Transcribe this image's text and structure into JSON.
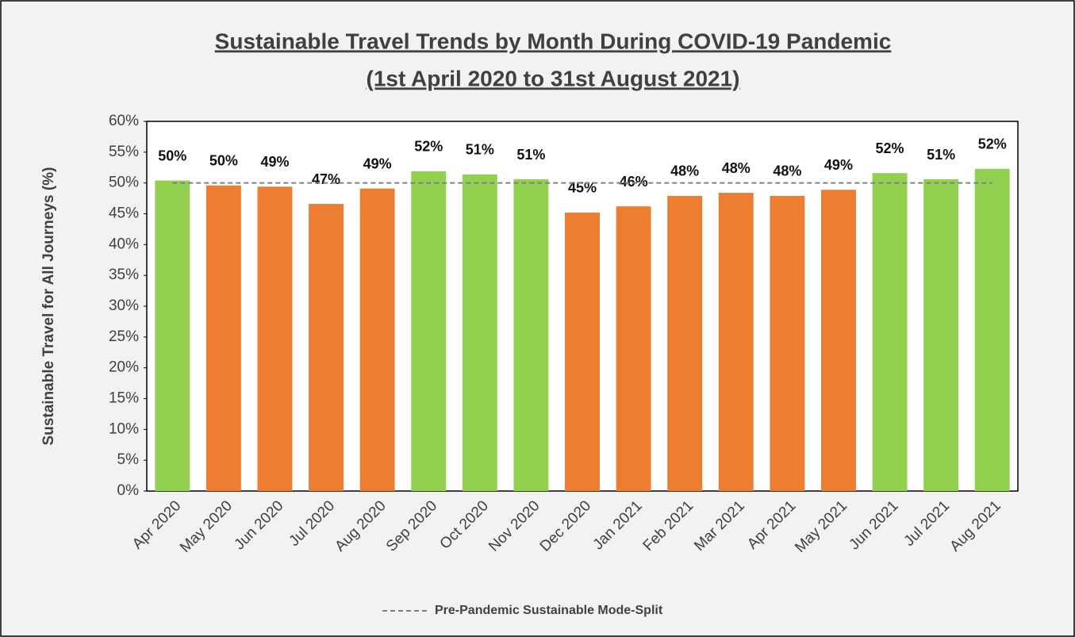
{
  "chart_data": {
    "type": "bar",
    "title": "Sustainable Travel Trends by Month During COVID-19 Pandemic",
    "subtitle": "(1st April 2020 to 31st August 2021)",
    "y_axis_label": "Sustainable Travel for All Journeys (%)",
    "categories": [
      "Apr 2020",
      "May 2020",
      "Jun 2020",
      "Jul 2020",
      "Aug 2020",
      "Sep 2020",
      "Oct 2020",
      "Nov 2020",
      "Dec 2020",
      "Jan 2021",
      "Feb 2021",
      "Mar 2021",
      "Apr 2021",
      "May 2021",
      "Jun 2021",
      "Jul 2021",
      "Aug 2021"
    ],
    "values": [
      50.4,
      49.6,
      49.4,
      46.6,
      49.1,
      51.9,
      51.4,
      50.6,
      45.2,
      46.2,
      47.9,
      48.4,
      47.9,
      48.9,
      51.6,
      50.6,
      52.3
    ],
    "value_labels": [
      "50%",
      "50%",
      "49%",
      "47%",
      "49%",
      "52%",
      "51%",
      "51%",
      "45%",
      "46%",
      "48%",
      "48%",
      "48%",
      "49%",
      "52%",
      "51%",
      "52%"
    ],
    "colors": [
      "#92d050",
      "#ed7d31",
      "#ed7d31",
      "#ed7d31",
      "#ed7d31",
      "#92d050",
      "#92d050",
      "#92d050",
      "#ed7d31",
      "#ed7d31",
      "#ed7d31",
      "#ed7d31",
      "#ed7d31",
      "#ed7d31",
      "#92d050",
      "#92d050",
      "#92d050"
    ],
    "reference_line": {
      "name": "Pre-Pandemic Sustainable Mode-Split",
      "value": 50,
      "color": "#808080"
    },
    "ylim": [
      0,
      60
    ],
    "yticks": [
      {
        "value": 0,
        "label": "0%"
      },
      {
        "value": 5,
        "label": "5%"
      },
      {
        "value": 10,
        "label": "10%"
      },
      {
        "value": 15,
        "label": "15%"
      },
      {
        "value": 20,
        "label": "20%"
      },
      {
        "value": 25,
        "label": "25%"
      },
      {
        "value": 30,
        "label": "30%"
      },
      {
        "value": 35,
        "label": "35%"
      },
      {
        "value": 40,
        "label": "40%"
      },
      {
        "value": 45,
        "label": "45%"
      },
      {
        "value": 50,
        "label": "50%"
      },
      {
        "value": 55,
        "label": "55%"
      },
      {
        "value": 60,
        "label": "60%"
      }
    ],
    "grid": false,
    "legend": "bottom"
  }
}
